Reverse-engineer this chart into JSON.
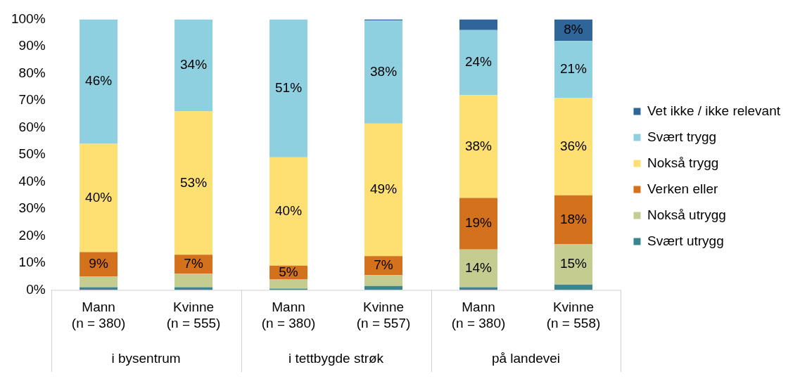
{
  "chart_data": {
    "type": "bar",
    "stacked": true,
    "categories": [
      "Mann\n(n = 380)",
      "Kvinne\n(n = 555)",
      "Mann\n(n = 380)",
      "Kvinne\n(n = 557)",
      "Mann\n(n = 380)",
      "Kvinne\n(n = 558)"
    ],
    "annotations": [
      "i bysentrum",
      "i tettbygde strøk",
      "på landevei"
    ],
    "series": [
      {
        "name": "Svært utrygg",
        "color": "#3b8590",
        "values": [
          1,
          1,
          0.5,
          1.5,
          1,
          2
        ]
      },
      {
        "name": "Nokså utrygg",
        "color": "#c4cd8f",
        "values": [
          4,
          5,
          3.5,
          4,
          14,
          15
        ],
        "value_labels": [
          null,
          null,
          null,
          null,
          "14%",
          "15%"
        ]
      },
      {
        "name": "Verken eller",
        "color": "#d4711c",
        "values": [
          9,
          7,
          5,
          7,
          19,
          18
        ],
        "value_labels": [
          "9%",
          "7%",
          "5%",
          "7%",
          "19%",
          "18%"
        ]
      },
      {
        "name": "Nokså trygg",
        "color": "#fedf72",
        "values": [
          40,
          53,
          40,
          49,
          38,
          36
        ],
        "value_labels": [
          "40%",
          "53%",
          "40%",
          "49%",
          "38%",
          "36%"
        ]
      },
      {
        "name": "Svært trygg",
        "color": "#8ecfe0",
        "values": [
          46,
          34,
          51,
          38,
          24,
          21
        ],
        "value_labels": [
          "46%",
          "34%",
          "51%",
          "38%",
          "24%",
          "21%"
        ]
      },
      {
        "name": "Vet ikke / ikke relevant",
        "color": "#2f6599",
        "values": [
          0,
          0,
          0,
          0.5,
          4,
          8
        ],
        "value_labels": [
          null,
          null,
          null,
          null,
          null,
          "8%"
        ]
      }
    ],
    "ylim": [
      0,
      100
    ],
    "yticks": [
      {
        "value": 0,
        "label": "0%"
      },
      {
        "value": 10,
        "label": "10%"
      },
      {
        "value": 20,
        "label": "20%"
      },
      {
        "value": 30,
        "label": "30%"
      },
      {
        "value": 40,
        "label": "40%"
      },
      {
        "value": 50,
        "label": "50%"
      },
      {
        "value": 60,
        "label": "60%"
      },
      {
        "value": 70,
        "label": "70%"
      },
      {
        "value": 80,
        "label": "80%"
      },
      {
        "value": 90,
        "label": "90%"
      },
      {
        "value": 100,
        "label": "100%"
      }
    ],
    "grid": false,
    "legend": "right"
  }
}
